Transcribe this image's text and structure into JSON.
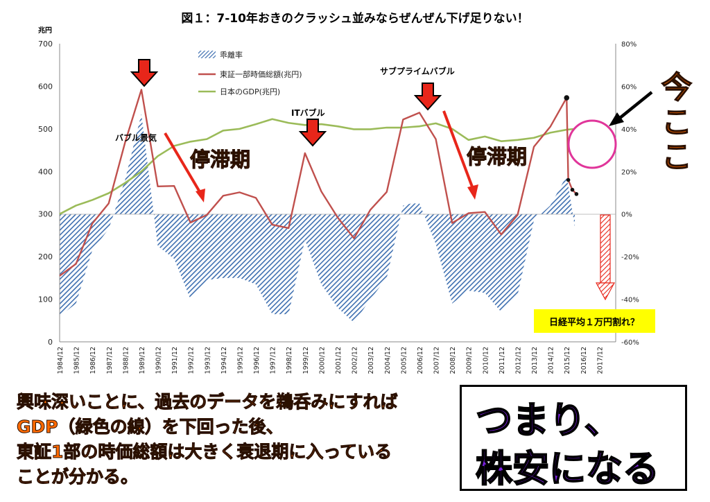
{
  "chart_data": {
    "type": "line",
    "title": "図１：7-10年おきのクラッシュ並みならぜんぜん下げ足りない！",
    "y_left_unit": "兆円",
    "y_left_ticks": [
      "0",
      "100",
      "200",
      "300",
      "400",
      "500",
      "600",
      "700"
    ],
    "y_right_ticks": [
      "-60%",
      "-40%",
      "-20%",
      "0%",
      "20%",
      "40%",
      "60%",
      "80%"
    ],
    "ylim_left": [
      0,
      700
    ],
    "ylim_right": [
      -60,
      80
    ],
    "grid": false,
    "legend_placement": "top-left",
    "x_labels": [
      "1984/12",
      "1985/12",
      "1986/12",
      "1987/12",
      "1988/12",
      "1989/12",
      "1990/12",
      "1991/12",
      "1992/12",
      "1993/12",
      "1994/12",
      "1995/12",
      "1996/12",
      "1997/12",
      "1998/12",
      "1999/12",
      "2000/12",
      "2001/12",
      "2002/12",
      "2003/12",
      "2004/12",
      "2005/12",
      "2006/12",
      "2007/12",
      "2008/12",
      "2009/12",
      "2010/12",
      "2011/12",
      "2012/12",
      "2013/12",
      "2014/12",
      "2015/12",
      "2016/12",
      "2017/12"
    ],
    "series": [
      {
        "name": "乖離率",
        "axis": "right",
        "style": "hatched-area",
        "color": "#3e6fb0",
        "x": [
          0,
          1,
          2,
          3,
          4,
          5,
          6,
          7,
          8,
          9,
          10,
          11,
          12,
          13,
          14,
          15,
          16,
          17,
          18,
          19,
          20,
          21,
          21.5,
          22,
          23,
          24,
          25,
          26,
          27,
          28,
          29,
          30,
          31,
          31.5
        ],
        "values": [
          -48,
          -42,
          -17,
          -7,
          16,
          47,
          -15,
          -21,
          -40,
          -31,
          -30,
          -30,
          -33,
          -47,
          -47,
          -12,
          -33,
          -44,
          -51,
          -40,
          -30,
          4,
          5,
          5,
          -14,
          -42,
          -36,
          -37,
          -46,
          -38,
          -3,
          4,
          18,
          -6
        ]
      },
      {
        "name": "東証一部時価総額(兆円)",
        "axis": "left",
        "style": "line",
        "color": "#c0504d",
        "x": [
          0,
          1,
          2,
          3,
          4,
          5,
          6,
          7,
          8,
          9,
          10,
          11,
          12,
          13,
          14,
          15,
          16,
          17,
          18,
          19,
          20,
          21,
          22,
          23,
          24,
          25,
          26,
          27,
          28,
          29,
          30,
          31,
          31.1,
          31.35,
          31.6
        ],
        "values": [
          155,
          183,
          278,
          325,
          468,
          592,
          365,
          366,
          280,
          298,
          343,
          351,
          338,
          275,
          267,
          443,
          353,
          292,
          243,
          310,
          352,
          522,
          538,
          476,
          279,
          302,
          305,
          252,
          298,
          458,
          505,
          573,
          380,
          357,
          347
        ]
      },
      {
        "name": "日本のGDP(兆円)",
        "axis": "left",
        "style": "line",
        "color": "#9bbb59",
        "x": [
          0,
          1,
          2,
          3,
          4,
          5,
          6,
          7,
          8,
          9,
          10,
          11,
          12,
          13,
          14,
          15,
          16,
          17,
          18,
          19,
          20,
          21,
          22,
          23,
          24,
          25,
          26,
          27,
          28,
          29,
          30,
          31,
          31.5
        ],
        "values": [
          300,
          320,
          333,
          349,
          373,
          400,
          436,
          460,
          470,
          476,
          496,
          500,
          511,
          523,
          514,
          509,
          511,
          506,
          499,
          499,
          503,
          503,
          506,
          513,
          500,
          474,
          482,
          471,
          474,
          479,
          491,
          498,
          500
        ]
      }
    ],
    "annotations": {
      "bubble": "バブル景気",
      "it_bubble": "ITバブル",
      "subprime": "サブプライムバブル",
      "stagnation_1": "停滞期",
      "stagnation_2": "停滞期",
      "nikkei_question": "日経平均１万円割れ？"
    }
  },
  "notes": {
    "line1": "興味深いことに、過去のデータを鵜呑みにすれば",
    "line2": "GDP（緑色の線）を下回った後、",
    "line3": "東証1部の時価総額は大きく衰退期に入っている",
    "line4": "ことが分かる。"
  },
  "conclusion": {
    "line1": "つまり、",
    "line2": "株安になる"
  },
  "imako": {
    "char1": "今",
    "char2": "こ",
    "char3": "こ"
  },
  "colors": {
    "hatch": "#3e6fb0",
    "market_cap": "#c0504d",
    "gdp": "#9bbb59",
    "arrow_red": "#e8261a",
    "circle": "#e0359a",
    "note_text": "#ff6a00",
    "conclusion_text": "#7b1fe0",
    "question_bg": "#ffff00"
  }
}
